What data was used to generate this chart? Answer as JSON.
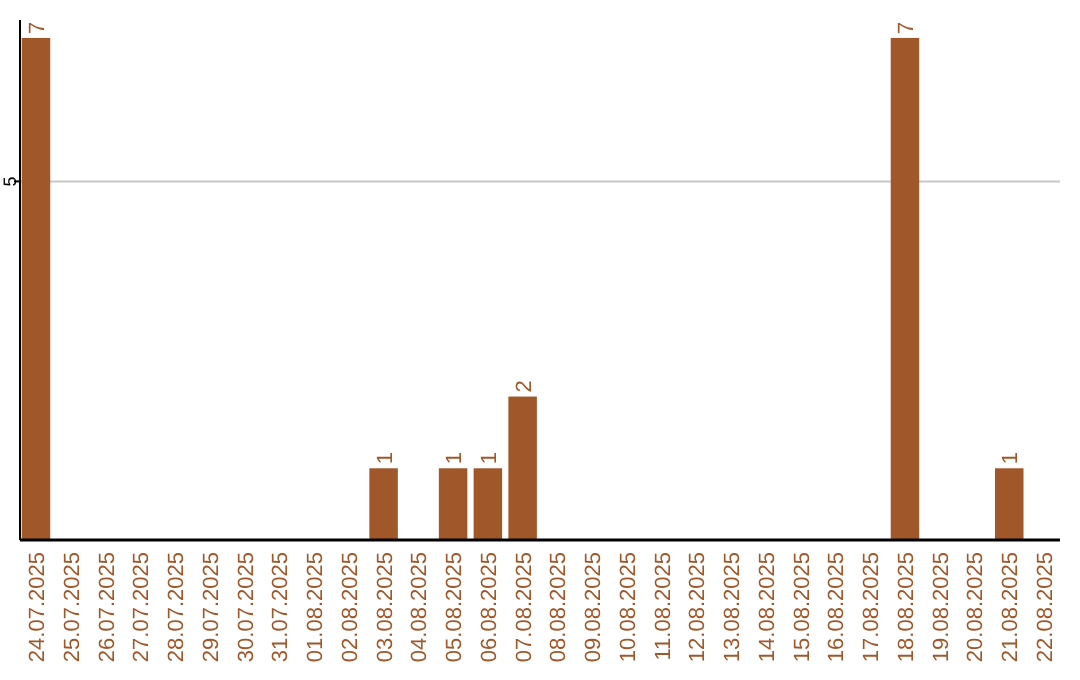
{
  "chart_data": {
    "type": "bar",
    "categories": [
      "24.07.2025",
      "25.07.2025",
      "26.07.2025",
      "27.07.2025",
      "28.07.2025",
      "29.07.2025",
      "30.07.2025",
      "31.07.2025",
      "01.08.2025",
      "02.08.2025",
      "03.08.2025",
      "04.08.2025",
      "05.08.2025",
      "06.08.2025",
      "07.08.2025",
      "08.08.2025",
      "09.08.2025",
      "10.08.2025",
      "11.08.2025",
      "12.08.2025",
      "13.08.2025",
      "14.08.2025",
      "15.08.2025",
      "16.08.2025",
      "17.08.2025",
      "18.08.2025",
      "19.08.2025",
      "20.08.2025",
      "21.08.2025",
      "22.08.2025"
    ],
    "values": [
      7,
      0,
      0,
      0,
      0,
      0,
      0,
      0,
      0,
      0,
      1,
      0,
      1,
      1,
      2,
      0,
      0,
      0,
      0,
      0,
      0,
      0,
      0,
      0,
      0,
      7,
      0,
      0,
      1,
      0
    ],
    "value_labels": [
      "7",
      null,
      null,
      null,
      null,
      null,
      null,
      null,
      null,
      null,
      "1",
      null,
      "1",
      "1",
      "2",
      null,
      null,
      null,
      null,
      null,
      null,
      null,
      null,
      null,
      null,
      "7",
      null,
      null,
      "1",
      null
    ],
    "color": "#a0582a",
    "ylim": [
      0,
      7.25
    ],
    "yticks": [
      5
    ],
    "grid": "y"
  }
}
